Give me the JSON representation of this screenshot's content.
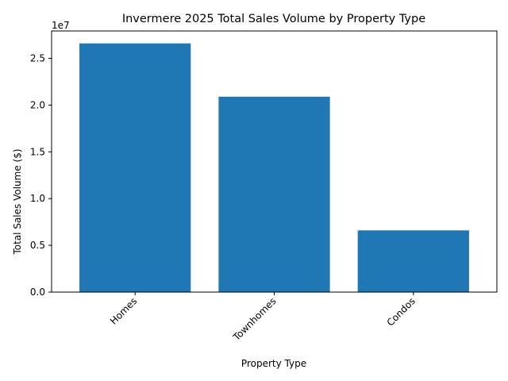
{
  "chart_data": {
    "type": "bar",
    "title": "Invermere 2025 Total Sales Volume by Property Type",
    "xlabel": "Property Type",
    "ylabel": "Total Sales Volume ($)",
    "y_offset_label": "1e7",
    "categories": [
      "Homes",
      "Townhomes",
      "Condos"
    ],
    "values": [
      26600000,
      20900000,
      6600000
    ],
    "ylim": [
      0,
      27930000
    ],
    "yticks": [
      0,
      5000000,
      10000000,
      15000000,
      20000000,
      25000000
    ],
    "ytick_labels": [
      "0.0",
      "0.5",
      "1.0",
      "1.5",
      "2.0",
      "2.5"
    ],
    "bar_color": "#1f77b4",
    "grid": false,
    "legend": "none"
  }
}
